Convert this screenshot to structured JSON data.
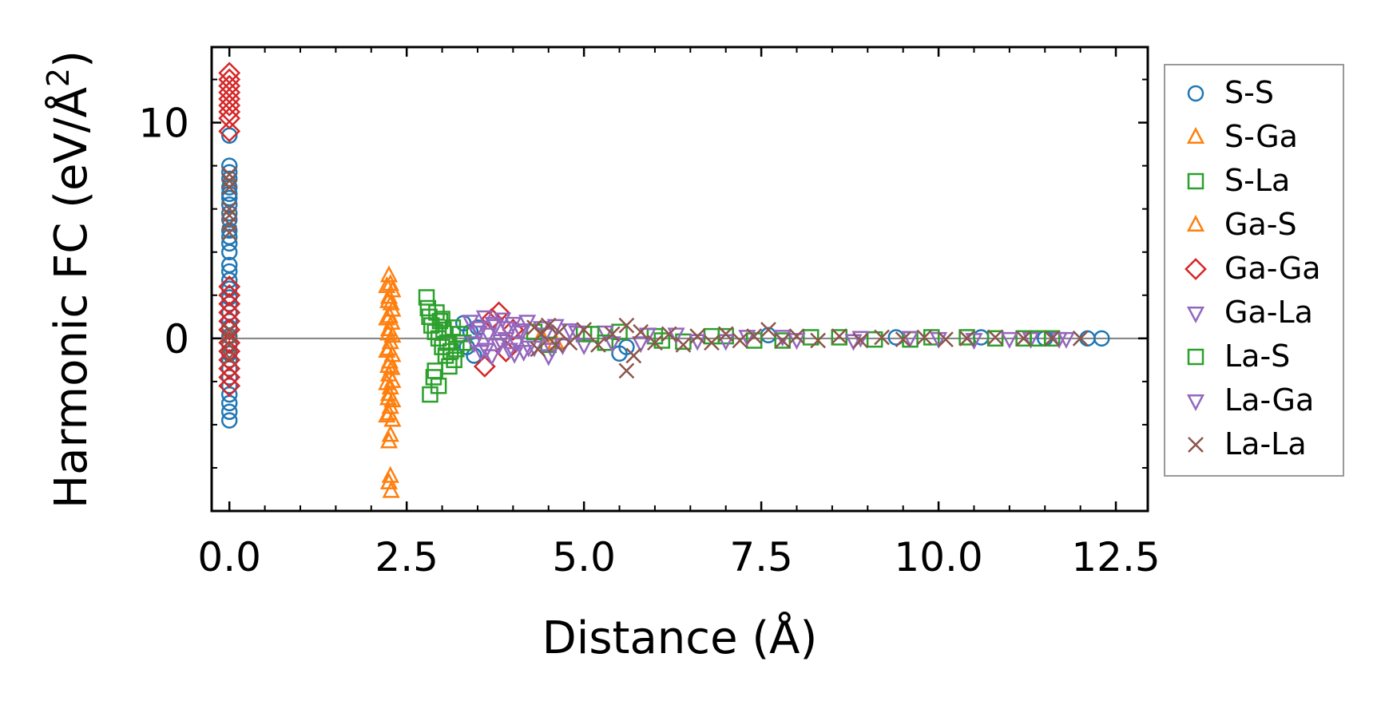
{
  "chart_data": {
    "type": "scatter",
    "title": "",
    "xlabel": "Distance (Å)",
    "ylabel_main": "Harmonic FC (eV/Å",
    "ylabel_sup": "2",
    "ylabel_close": ")",
    "xlim": [
      -0.25,
      12.95
    ],
    "ylim": [
      -8.0,
      13.5
    ],
    "xticks": [
      0.0,
      2.5,
      5.0,
      7.5,
      10.0,
      12.5
    ],
    "xtick_labels": [
      "0.0",
      "2.5",
      "5.0",
      "7.5",
      "10.0",
      "12.5"
    ],
    "x_minor_step": 0.5,
    "yticks": [
      0,
      10
    ],
    "ytick_labels": [
      "0",
      "10"
    ],
    "y_minor_step": 2,
    "zero_line": 0,
    "legend_position": "outside-right",
    "series": [
      {
        "name": "S-S",
        "marker": "circle",
        "color": "#1f77b4",
        "points": [
          [
            0,
            8.0
          ],
          [
            0,
            7.7
          ],
          [
            0,
            7.4
          ],
          [
            0,
            7.0
          ],
          [
            0,
            6.7
          ],
          [
            0,
            6.5
          ],
          [
            0,
            6.2
          ],
          [
            0,
            5.8
          ],
          [
            0,
            5.5
          ],
          [
            0,
            5.0
          ],
          [
            0,
            4.7
          ],
          [
            0,
            4.4
          ],
          [
            0,
            4.0
          ],
          [
            0,
            3.4
          ],
          [
            0,
            3.1
          ],
          [
            0,
            2.7
          ],
          [
            0,
            2.3
          ],
          [
            0,
            1.9
          ],
          [
            0,
            1.6
          ],
          [
            0,
            1.2
          ],
          [
            0,
            0.8
          ],
          [
            0,
            0.5
          ],
          [
            0,
            0.1
          ],
          [
            0,
            -0.3
          ],
          [
            0,
            -0.7
          ],
          [
            0,
            -1.0
          ],
          [
            0,
            -1.4
          ],
          [
            0,
            -1.8
          ],
          [
            0,
            -2.2
          ],
          [
            0,
            -2.6
          ],
          [
            0,
            -3.0
          ],
          [
            0,
            -3.4
          ],
          [
            0,
            -3.8
          ],
          [
            0,
            9.4
          ],
          [
            3.3,
            0.7
          ],
          [
            3.35,
            -0.4
          ],
          [
            3.4,
            0.3
          ],
          [
            3.45,
            -0.8
          ],
          [
            3.5,
            0.5
          ],
          [
            5.5,
            -0.7
          ],
          [
            5.6,
            -0.4
          ],
          [
            7.6,
            0.15
          ],
          [
            9.4,
            0.05
          ],
          [
            10.6,
            0.05
          ],
          [
            11.5,
            0.0
          ],
          [
            12.1,
            0.0
          ],
          [
            12.3,
            0.0
          ]
        ]
      },
      {
        "name": "S-Ga",
        "marker": "triangle-up",
        "color": "#ff7f0e",
        "points": [
          [
            2.25,
            2.9
          ],
          [
            2.27,
            2.5
          ],
          [
            2.3,
            2.2
          ],
          [
            2.25,
            1.9
          ],
          [
            2.28,
            1.6
          ],
          [
            2.3,
            1.3
          ],
          [
            2.26,
            1.0
          ],
          [
            2.29,
            0.7
          ],
          [
            2.25,
            0.4
          ],
          [
            2.3,
            0.1
          ],
          [
            2.27,
            -0.2
          ],
          [
            2.25,
            -0.5
          ],
          [
            2.3,
            -0.8
          ],
          [
            2.26,
            -1.1
          ],
          [
            2.29,
            -1.4
          ],
          [
            2.25,
            -1.7
          ],
          [
            2.3,
            -2.0
          ],
          [
            2.27,
            -2.3
          ],
          [
            2.25,
            -2.6
          ],
          [
            2.3,
            -2.9
          ],
          [
            2.27,
            -3.2
          ],
          [
            2.25,
            -3.5
          ],
          [
            2.3,
            -3.8
          ],
          [
            2.27,
            -4.5
          ],
          [
            2.25,
            -4.8
          ],
          [
            2.27,
            -6.4
          ],
          [
            2.25,
            -6.7
          ],
          [
            2.28,
            -7.1
          ],
          [
            4.4,
            0.1
          ],
          [
            4.6,
            -0.2
          ]
        ]
      },
      {
        "name": "S-La",
        "marker": "square",
        "color": "#2ca02c",
        "points": [
          [
            2.78,
            1.9
          ],
          [
            2.8,
            1.4
          ],
          [
            2.82,
            1.0
          ],
          [
            2.85,
            0.6
          ],
          [
            2.9,
            0.3
          ],
          [
            2.95,
            0.0
          ],
          [
            3.0,
            -0.4
          ],
          [
            3.05,
            -0.8
          ],
          [
            3.1,
            -1.3
          ],
          [
            2.88,
            -1.8
          ],
          [
            2.83,
            -2.6
          ],
          [
            3.15,
            0.5
          ],
          [
            3.2,
            -0.5
          ],
          [
            3.25,
            0.2
          ],
          [
            3.3,
            -0.2
          ],
          [
            4.3,
            0.3
          ],
          [
            4.5,
            -0.3
          ],
          [
            5.0,
            0.2
          ],
          [
            5.5,
            0.3
          ],
          [
            6.0,
            0.1
          ],
          [
            6.4,
            -0.15
          ],
          [
            7.0,
            0.1
          ],
          [
            7.8,
            -0.1
          ],
          [
            8.6,
            0.05
          ],
          [
            9.6,
            -0.05
          ],
          [
            10.4,
            0.05
          ],
          [
            11.2,
            0.0
          ],
          [
            11.6,
            0.0
          ]
        ]
      },
      {
        "name": "Ga-S",
        "marker": "triangle-up",
        "color": "#ff7f0e",
        "points": [
          [
            2.22,
            2.4
          ],
          [
            2.24,
            1.7
          ],
          [
            2.22,
            0.9
          ],
          [
            2.24,
            0.2
          ],
          [
            2.22,
            -0.6
          ],
          [
            2.24,
            -1.3
          ],
          [
            2.22,
            -2.1
          ],
          [
            2.24,
            -2.8
          ],
          [
            2.22,
            -3.6
          ]
        ]
      },
      {
        "name": "Ga-Ga",
        "marker": "diamond",
        "color": "#d62728",
        "points": [
          [
            0,
            12.3
          ],
          [
            0,
            12.0
          ],
          [
            0,
            11.7
          ],
          [
            0,
            11.4
          ],
          [
            0,
            11.1
          ],
          [
            0,
            10.8
          ],
          [
            0,
            10.5
          ],
          [
            0,
            10.2
          ],
          [
            0,
            9.6
          ],
          [
            0,
            2.4
          ],
          [
            0,
            2.0
          ],
          [
            0,
            1.6
          ],
          [
            0,
            1.2
          ],
          [
            0,
            0.8
          ],
          [
            0,
            0.4
          ],
          [
            0,
            -0.2
          ],
          [
            0,
            -0.6
          ],
          [
            0,
            -1.0
          ],
          [
            0,
            -1.4
          ],
          [
            0,
            -1.8
          ],
          [
            0,
            -2.2
          ],
          [
            3.6,
            -1.3
          ],
          [
            3.7,
            0.9
          ],
          [
            3.8,
            1.2
          ],
          [
            3.9,
            -0.6
          ],
          [
            4.0,
            0.4
          ]
        ]
      },
      {
        "name": "Ga-La",
        "marker": "triangle-down",
        "color": "#9467bd",
        "points": [
          [
            3.4,
            0.8
          ],
          [
            3.45,
            -0.2
          ],
          [
            3.5,
            0.5
          ],
          [
            3.55,
            -0.6
          ],
          [
            3.6,
            1.0
          ],
          [
            3.65,
            0.2
          ],
          [
            3.7,
            -0.8
          ],
          [
            3.75,
            0.6
          ],
          [
            3.8,
            -0.3
          ],
          [
            3.85,
            0.9
          ],
          [
            3.9,
            0.0
          ],
          [
            3.95,
            -0.5
          ],
          [
            4.0,
            0.7
          ],
          [
            4.05,
            -0.2
          ],
          [
            4.1,
            0.4
          ],
          [
            4.15,
            -0.6
          ],
          [
            4.2,
            0.8
          ],
          [
            4.3,
            -0.4
          ],
          [
            4.4,
            0.5
          ],
          [
            4.5,
            -0.8
          ],
          [
            4.6,
            0.6
          ],
          [
            4.7,
            -0.3
          ],
          [
            4.8,
            0.4
          ],
          [
            5.0,
            -0.3
          ],
          [
            5.3,
            0.3
          ],
          [
            5.8,
            -0.2
          ],
          [
            6.3,
            0.2
          ],
          [
            7.0,
            -0.1
          ],
          [
            7.8,
            0.1
          ],
          [
            8.8,
            -0.1
          ],
          [
            9.6,
            0.05
          ],
          [
            10.5,
            -0.05
          ],
          [
            11.3,
            0.0
          ],
          [
            11.8,
            0.0
          ]
        ]
      },
      {
        "name": "La-S",
        "marker": "square",
        "color": "#2ca02c",
        "points": [
          [
            2.92,
            1.2
          ],
          [
            2.97,
            0.8
          ],
          [
            3.02,
            0.4
          ],
          [
            3.07,
            -0.2
          ],
          [
            3.12,
            -0.6
          ],
          [
            3.17,
            -1.0
          ],
          [
            2.9,
            -1.5
          ],
          [
            2.95,
            -2.2
          ],
          [
            3.0,
            0.9
          ],
          [
            5.1,
            0.2
          ],
          [
            5.3,
            -0.2
          ],
          [
            6.1,
            -0.1
          ],
          [
            6.8,
            0.1
          ],
          [
            7.4,
            -0.1
          ],
          [
            8.2,
            0.05
          ],
          [
            9.1,
            -0.05
          ],
          [
            9.9,
            0.05
          ],
          [
            10.8,
            0.0
          ],
          [
            11.4,
            0.0
          ]
        ]
      },
      {
        "name": "La-Ga",
        "marker": "triangle-down",
        "color": "#9467bd",
        "points": [
          [
            3.52,
            0.3
          ],
          [
            3.62,
            -0.5
          ],
          [
            3.72,
            0.7
          ],
          [
            3.82,
            -0.1
          ],
          [
            3.92,
            0.5
          ],
          [
            4.02,
            -0.7
          ],
          [
            4.12,
            0.3
          ],
          [
            4.22,
            -0.4
          ],
          [
            4.45,
            0.2
          ],
          [
            4.55,
            -0.5
          ],
          [
            4.9,
            0.3
          ],
          [
            5.4,
            -0.2
          ],
          [
            5.9,
            0.2
          ],
          [
            6.6,
            -0.1
          ],
          [
            7.3,
            0.1
          ],
          [
            8.0,
            -0.05
          ],
          [
            8.9,
            0.05
          ],
          [
            10.0,
            0.0
          ],
          [
            11.0,
            0.0
          ],
          [
            11.7,
            0.0
          ]
        ]
      },
      {
        "name": "La-La",
        "marker": "x",
        "color": "#8c564b",
        "points": [
          [
            0,
            7.6
          ],
          [
            0,
            7.3
          ],
          [
            0,
            7.0
          ],
          [
            0,
            6.0
          ],
          [
            0,
            5.7
          ],
          [
            0,
            5.3
          ],
          [
            0,
            4.9
          ],
          [
            0,
            0.4
          ],
          [
            0,
            0.1
          ],
          [
            0,
            -0.3
          ],
          [
            0,
            -0.9
          ],
          [
            4.3,
            0.5
          ],
          [
            4.35,
            -0.5
          ],
          [
            4.4,
            0.2
          ],
          [
            4.5,
            0.6
          ],
          [
            4.6,
            -0.3
          ],
          [
            4.65,
            0.3
          ],
          [
            4.8,
            -0.2
          ],
          [
            5.0,
            0.4
          ],
          [
            5.2,
            -0.3
          ],
          [
            5.4,
            0.2
          ],
          [
            5.6,
            0.6
          ],
          [
            5.6,
            -1.5
          ],
          [
            5.7,
            -0.8
          ],
          [
            5.8,
            0.3
          ],
          [
            6.0,
            -0.2
          ],
          [
            6.2,
            0.2
          ],
          [
            6.4,
            -0.3
          ],
          [
            6.6,
            0.1
          ],
          [
            6.8,
            -0.2
          ],
          [
            7.0,
            0.2
          ],
          [
            7.2,
            -0.1
          ],
          [
            7.4,
            0.1
          ],
          [
            7.6,
            0.4
          ],
          [
            7.8,
            -0.1
          ],
          [
            8.0,
            0.1
          ],
          [
            8.3,
            -0.1
          ],
          [
            8.6,
            0.1
          ],
          [
            8.9,
            -0.1
          ],
          [
            9.2,
            0.05
          ],
          [
            9.5,
            -0.05
          ],
          [
            9.8,
            0.05
          ],
          [
            10.1,
            -0.05
          ],
          [
            10.4,
            0.0
          ],
          [
            10.8,
            0.05
          ],
          [
            11.2,
            0.0
          ],
          [
            11.6,
            0.0
          ],
          [
            12.0,
            0.0
          ]
        ]
      }
    ]
  }
}
